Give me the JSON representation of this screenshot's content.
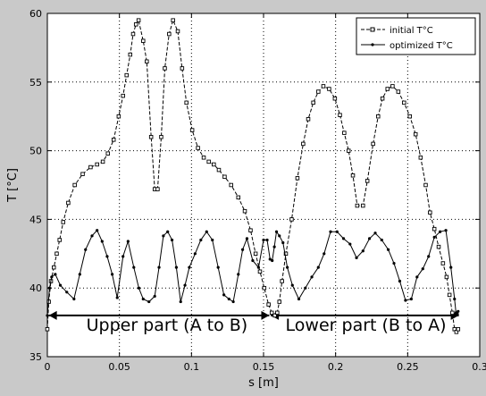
{
  "chart_data": {
    "type": "line",
    "xlabel": "s [m]",
    "ylabel": "T [°C]",
    "xlim": [
      0,
      0.3
    ],
    "ylim": [
      35,
      60
    ],
    "grid": true,
    "legend_placement": "top-right",
    "x_ticks": [
      0,
      0.05,
      0.1,
      0.15,
      0.2,
      0.25,
      0.3
    ],
    "x_tick_labels": [
      "0",
      "0.05",
      "0.1",
      "0.15",
      "0.2",
      "0.25",
      "0.3"
    ],
    "y_ticks": [
      35,
      40,
      45,
      50,
      55,
      60
    ],
    "y_tick_labels": [
      "35",
      "40",
      "45",
      "50",
      "55",
      "60"
    ],
    "series": [
      {
        "name": "initial T°C",
        "style": "dashed-square",
        "color": "#000000",
        "x": [
          0,
          0.001,
          0.0025,
          0.0045,
          0.0065,
          0.0085,
          0.011,
          0.0145,
          0.019,
          0.0245,
          0.03,
          0.0345,
          0.0385,
          0.042,
          0.046,
          0.0495,
          0.0525,
          0.055,
          0.0575,
          0.0595,
          0.0615,
          0.0633,
          0.0665,
          0.069,
          0.072,
          0.0745,
          0.0765,
          0.079,
          0.0815,
          0.0845,
          0.0872,
          0.0905,
          0.0935,
          0.0965,
          0.1005,
          0.1045,
          0.1085,
          0.112,
          0.1155,
          0.119,
          0.123,
          0.1275,
          0.1325,
          0.137,
          0.141,
          0.1445,
          0.1475,
          0.1505,
          0.1535,
          0.1557,
          0.1578,
          0.1595,
          0.161,
          0.1628,
          0.1655,
          0.1695,
          0.1735,
          0.1775,
          0.181,
          0.1845,
          0.188,
          0.1915,
          0.1955,
          0.1995,
          0.203,
          0.206,
          0.209,
          0.212,
          0.215,
          0.219,
          0.222,
          0.226,
          0.2295,
          0.2325,
          0.236,
          0.2395,
          0.2435,
          0.2475,
          0.2515,
          0.2555,
          0.259,
          0.2625,
          0.2655,
          0.2685,
          0.2715,
          0.2745,
          0.277,
          0.279,
          0.281,
          0.2825,
          0.2838,
          0.285
        ],
        "y": [
          37,
          39,
          40.5,
          41.5,
          42.5,
          43.5,
          44.8,
          46.2,
          47.5,
          48.3,
          48.8,
          49,
          49.2,
          49.8,
          50.8,
          52.5,
          54,
          55.5,
          57,
          58.5,
          59.2,
          59.5,
          58,
          56.5,
          51,
          47.2,
          47.2,
          51,
          56,
          58.5,
          59.5,
          58.7,
          56,
          53.5,
          51.5,
          50.2,
          49.5,
          49.2,
          49,
          48.6,
          48.1,
          47.5,
          46.6,
          45.6,
          44.2,
          42.5,
          41.2,
          40,
          38.8,
          38.2,
          38,
          38.2,
          39,
          40.5,
          42.5,
          45,
          48,
          50.5,
          52.3,
          53.5,
          54.3,
          54.7,
          54.5,
          53.8,
          52.6,
          51.3,
          50,
          48.2,
          46,
          46,
          47.8,
          50.5,
          52.5,
          53.8,
          54.5,
          54.7,
          54.3,
          53.5,
          52.5,
          51.2,
          49.5,
          47.5,
          45.5,
          44.3,
          43,
          41.8,
          40.8,
          39.5,
          38.2,
          37,
          36.8,
          37
        ]
      },
      {
        "name": "optimized T°C",
        "style": "solid-dot",
        "color": "#000000",
        "x": [
          0,
          0.0015,
          0.003,
          0.0055,
          0.009,
          0.0135,
          0.0185,
          0.0225,
          0.0265,
          0.031,
          0.0345,
          0.038,
          0.0415,
          0.045,
          0.0485,
          0.0525,
          0.056,
          0.06,
          0.0635,
          0.0665,
          0.0705,
          0.0745,
          0.0775,
          0.0805,
          0.0835,
          0.0865,
          0.0895,
          0.0925,
          0.0955,
          0.0985,
          0.1025,
          0.1065,
          0.1105,
          0.1145,
          0.1185,
          0.1225,
          0.126,
          0.129,
          0.1325,
          0.1355,
          0.1385,
          0.1425,
          0.1465,
          0.15,
          0.1525,
          0.1545,
          0.156,
          0.1575,
          0.159,
          0.161,
          0.1635,
          0.1665,
          0.17,
          0.1745,
          0.179,
          0.1835,
          0.188,
          0.192,
          0.1965,
          0.201,
          0.2055,
          0.21,
          0.2145,
          0.219,
          0.2235,
          0.2275,
          0.232,
          0.2365,
          0.2405,
          0.2445,
          0.2485,
          0.2525,
          0.2565,
          0.2605,
          0.2645,
          0.2685,
          0.2725,
          0.2765,
          0.28,
          0.2825,
          0.2835,
          0.2845,
          0.285
        ],
        "y": [
          38,
          40,
          40.8,
          41,
          40.2,
          39.7,
          39.2,
          41,
          42.8,
          43.8,
          44.2,
          43.4,
          42.3,
          41,
          39.3,
          42.3,
          43.4,
          41.5,
          40,
          39.2,
          39,
          39.4,
          41.5,
          43.8,
          44.1,
          43.5,
          41.5,
          39,
          40.2,
          41.5,
          42.5,
          43.5,
          44.1,
          43.5,
          41.5,
          39.5,
          39.2,
          39,
          41,
          42.8,
          43.6,
          42,
          41.5,
          43.5,
          43.5,
          42.1,
          42,
          43,
          44.1,
          43.8,
          43.3,
          41.5,
          40.2,
          39.2,
          40,
          40.8,
          41.5,
          42.5,
          44.1,
          44.1,
          43.6,
          43.2,
          42.2,
          42.7,
          43.6,
          44,
          43.5,
          42.8,
          41.8,
          40.5,
          39.1,
          39.2,
          40.8,
          41.4,
          42.3,
          43.7,
          44.1,
          44.2,
          41.5,
          39.2,
          38.2,
          38.1,
          38.3
        ]
      }
    ],
    "annotations": [
      {
        "text": "Upper part (A to B)",
        "x": 0.083,
        "y": 36.9
      },
      {
        "text": "Lower part (B to A)",
        "x": 0.221,
        "y": 36.9
      }
    ],
    "arrows": [
      {
        "from": 0.001,
        "to": 0.154,
        "y": 38.0
      },
      {
        "from": 0.155,
        "to": 0.2855,
        "y": 38.0
      }
    ]
  }
}
